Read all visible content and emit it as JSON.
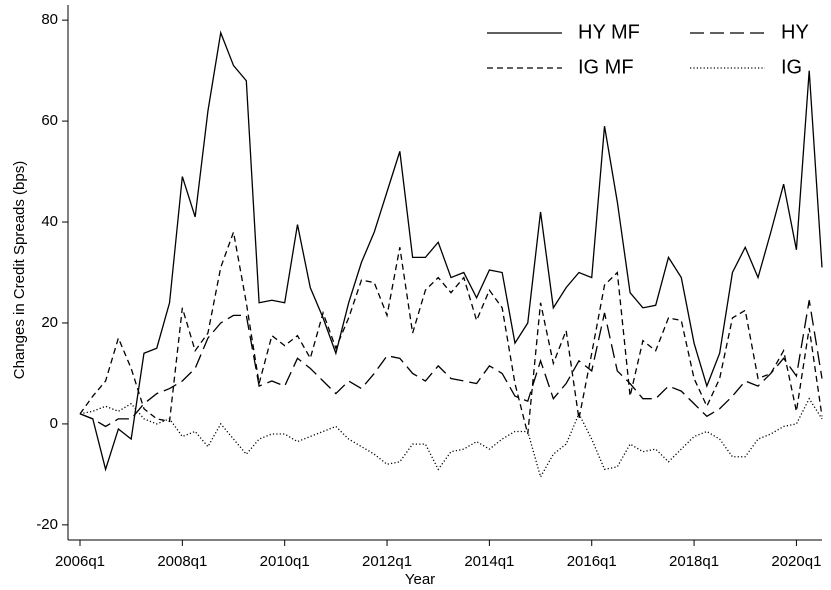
{
  "chart_data": {
    "type": "line",
    "y_label": "Changes in Credit Spreads (bps)",
    "x_label": "Year",
    "x": [
      "2006q1",
      "2006q2",
      "2006q3",
      "2006q4",
      "2007q1",
      "2007q2",
      "2007q3",
      "2007q4",
      "2008q1",
      "2008q2",
      "2008q3",
      "2008q4",
      "2009q1",
      "2009q2",
      "2009q3",
      "2009q4",
      "2010q1",
      "2010q2",
      "2010q3",
      "2010q4",
      "2011q1",
      "2011q2",
      "2011q3",
      "2011q4",
      "2012q1",
      "2012q2",
      "2012q3",
      "2012q4",
      "2013q1",
      "2013q2",
      "2013q3",
      "2013q4",
      "2014q1",
      "2014q2",
      "2014q3",
      "2014q4",
      "2015q1",
      "2015q2",
      "2015q3",
      "2015q4",
      "2016q1",
      "2016q2",
      "2016q3",
      "2016q4",
      "2017q1",
      "2017q2",
      "2017q3",
      "2017q4",
      "2018q1",
      "2018q2",
      "2018q3",
      "2018q4",
      "2019q1",
      "2019q2",
      "2019q3",
      "2019q4",
      "2020q1",
      "2020q2",
      "2020q3"
    ],
    "xtick_every": 8,
    "ylim": [
      -23,
      83
    ],
    "yticks": [
      -20,
      0,
      20,
      40,
      60,
      80
    ],
    "grid": false,
    "legend": "upper right",
    "series": [
      {
        "name": "HY MF",
        "color": "#000000",
        "linestyle": "solid",
        "values": [
          2,
          1,
          -9,
          -1,
          -3,
          14,
          15,
          24,
          49,
          41,
          62,
          77.5,
          71,
          68,
          24,
          24.5,
          24,
          39.5,
          27,
          21,
          14,
          24,
          32,
          38,
          46,
          54,
          33,
          33,
          36,
          29,
          30,
          25,
          30.5,
          30,
          16,
          20,
          42,
          23,
          27,
          30,
          29,
          59,
          44,
          26,
          23,
          23.5,
          33,
          29,
          16,
          7.5,
          14,
          30,
          35,
          29,
          38,
          47.5,
          34.5,
          70,
          31
        ]
      },
      {
        "name": "HY",
        "color": "#000000",
        "linestyle": "long",
        "values": [
          2,
          1,
          -0.5,
          1,
          1,
          4,
          6,
          7,
          8.5,
          11,
          17,
          20,
          21.5,
          21.5,
          7.5,
          8.5,
          7.5,
          13,
          11,
          8.5,
          6,
          8.5,
          7,
          10,
          13.5,
          13,
          10,
          8.5,
          11.5,
          9,
          8.5,
          8,
          11.5,
          10,
          5.5,
          4.5,
          12.5,
          5,
          8,
          12.5,
          10.5,
          22,
          10.5,
          8,
          5,
          5,
          7.5,
          6.5,
          4,
          1.5,
          3,
          5.5,
          8.5,
          7.5,
          10,
          13,
          9.5,
          24.5,
          9
        ]
      },
      {
        "name": "IG MF",
        "color": "#000000",
        "linestyle": "short",
        "values": [
          2,
          5.5,
          8.5,
          17,
          11,
          3,
          1,
          0.5,
          23,
          14.5,
          18,
          31,
          38,
          24,
          8,
          17.5,
          15.5,
          17.5,
          13,
          22,
          15,
          21,
          28.5,
          28,
          21.5,
          35,
          18,
          26.5,
          29,
          26,
          29,
          20.5,
          26.5,
          23,
          8,
          -2,
          24,
          12,
          18.5,
          1,
          14,
          27.5,
          30,
          5.5,
          16.5,
          14.5,
          21,
          20.5,
          9,
          3.5,
          9,
          21,
          22.5,
          9,
          10,
          14.5,
          2.5,
          19,
          1.5
        ]
      },
      {
        "name": "IG",
        "color": "#000000",
        "linestyle": "dot",
        "values": [
          2,
          2.5,
          3.5,
          2.5,
          4,
          1,
          0,
          1,
          -2.5,
          -1.5,
          -4.5,
          0,
          -3,
          -6,
          -3,
          -2,
          -2,
          -3.5,
          -2.5,
          -1.5,
          -0.5,
          -3,
          -4.5,
          -6,
          -8,
          -7.5,
          -4,
          -4,
          -9,
          -5.5,
          -5,
          -3.5,
          -5,
          -3,
          -1.5,
          -1.5,
          -10.5,
          -6,
          -4,
          2,
          -3,
          -9,
          -8.5,
          -4,
          -5.5,
          -5,
          -7.5,
          -5,
          -2.5,
          -1.5,
          -3,
          -6.5,
          -6.5,
          -3,
          -2,
          -0.5,
          0,
          5,
          1
        ]
      }
    ]
  }
}
